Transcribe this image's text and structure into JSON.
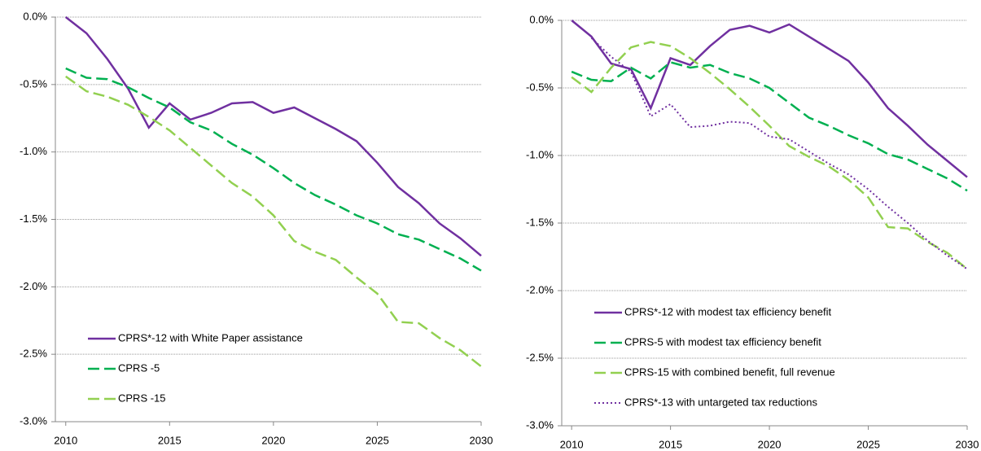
{
  "chart_data": [
    {
      "type": "line",
      "x": [
        2010,
        2011,
        2012,
        2013,
        2014,
        2015,
        2016,
        2017,
        2018,
        2019,
        2020,
        2021,
        2022,
        2023,
        2024,
        2025,
        2026,
        2027,
        2028,
        2029,
        2030
      ],
      "xlim": [
        2009.5,
        2030
      ],
      "xticks": [
        2010,
        2015,
        2020,
        2025,
        2030
      ],
      "ylim": [
        -3,
        0
      ],
      "yticks": [
        {
          "value": 0,
          "label": "0.0%"
        },
        {
          "value": -0.5,
          "label": "-0.5%"
        },
        {
          "value": -1,
          "label": "-1.0%"
        },
        {
          "value": -1.5,
          "label": "-1.5%"
        },
        {
          "value": -2,
          "label": "-2.0%"
        },
        {
          "value": -2.5,
          "label": "-2.5%"
        },
        {
          "value": -3,
          "label": "-3.0%"
        }
      ],
      "grid": true,
      "legend": "lower left",
      "series": [
        {
          "name": "CPRS*-12 with White Paper assistance",
          "color": "#7030a0",
          "dash": "solid",
          "values": [
            0,
            -0.12,
            -0.31,
            -0.53,
            -0.82,
            -0.64,
            -0.76,
            -0.71,
            -0.64,
            -0.63,
            -0.71,
            -0.67,
            -0.75,
            -0.83,
            -0.92,
            -1.08,
            -1.26,
            -1.38,
            -1.53,
            -1.64,
            -1.77
          ]
        },
        {
          "name": "CPRS -5",
          "color": "#00b050",
          "dash": "dash",
          "values": [
            -0.38,
            -0.45,
            -0.46,
            -0.52,
            -0.6,
            -0.67,
            -0.78,
            -0.84,
            -0.94,
            -1.02,
            -1.12,
            -1.23,
            -1.32,
            -1.39,
            -1.47,
            -1.53,
            -1.61,
            -1.65,
            -1.72,
            -1.79,
            -1.88
          ]
        },
        {
          "name": "CPRS -15",
          "color": "#92d050",
          "dash": "dash",
          "values": [
            -0.44,
            -0.55,
            -0.59,
            -0.65,
            -0.74,
            -0.84,
            -0.97,
            -1.1,
            -1.23,
            -1.33,
            -1.47,
            -1.66,
            -1.74,
            -1.8,
            -1.93,
            -2.05,
            -2.26,
            -2.27,
            -2.38,
            -2.47,
            -2.59
          ]
        }
      ]
    },
    {
      "type": "line",
      "x": [
        2010,
        2011,
        2012,
        2013,
        2014,
        2015,
        2016,
        2017,
        2018,
        2019,
        2020,
        2021,
        2022,
        2023,
        2024,
        2025,
        2026,
        2027,
        2028,
        2029,
        2030
      ],
      "xlim": [
        2009.5,
        2030
      ],
      "xticks": [
        2010,
        2015,
        2020,
        2025,
        2030
      ],
      "ylim": [
        -3,
        0
      ],
      "yticks": [
        {
          "value": 0,
          "label": "0.0%"
        },
        {
          "value": -0.5,
          "label": "-0.5%"
        },
        {
          "value": -1,
          "label": "-1.0%"
        },
        {
          "value": -1.5,
          "label": "-1.5%"
        },
        {
          "value": -2,
          "label": "-2.0%"
        },
        {
          "value": -2.5,
          "label": "-2.5%"
        },
        {
          "value": -3,
          "label": "-3.0%"
        }
      ],
      "grid": true,
      "legend": "lower left",
      "series": [
        {
          "name": "CPRS*-12 with modest tax efficiency benefit",
          "color": "#7030a0",
          "dash": "solid",
          "values": [
            0,
            -0.12,
            -0.32,
            -0.36,
            -0.65,
            -0.28,
            -0.33,
            -0.19,
            -0.07,
            -0.04,
            -0.09,
            -0.03,
            -0.12,
            -0.21,
            -0.3,
            -0.46,
            -0.65,
            -0.78,
            -0.92,
            -1.04,
            -1.16
          ]
        },
        {
          "name": "CPRS-5 with modest tax efficiency benefit",
          "color": "#00b050",
          "dash": "dash",
          "values": [
            -0.38,
            -0.44,
            -0.45,
            -0.35,
            -0.43,
            -0.31,
            -0.35,
            -0.33,
            -0.39,
            -0.43,
            -0.5,
            -0.61,
            -0.72,
            -0.78,
            -0.85,
            -0.91,
            -0.99,
            -1.03,
            -1.1,
            -1.17,
            -1.26
          ]
        },
        {
          "name": "CPRS-15 with combined benefit, full revenue",
          "color": "#92d050",
          "dash": "dash",
          "values": [
            -0.42,
            -0.53,
            -0.35,
            -0.2,
            -0.16,
            -0.19,
            -0.28,
            -0.39,
            -0.51,
            -0.64,
            -0.78,
            -0.93,
            -1.01,
            -1.08,
            -1.18,
            -1.31,
            -1.53,
            -1.54,
            -1.64,
            -1.72,
            -1.84
          ]
        },
        {
          "name": "CPRS*-13 with untargeted tax reductions",
          "color": "#7030a0",
          "dash": "dot",
          "values": [
            null,
            -0.13,
            -0.27,
            -0.38,
            -0.71,
            -0.62,
            -0.79,
            -0.78,
            -0.75,
            -0.76,
            -0.86,
            -0.88,
            -0.97,
            -1.06,
            -1.14,
            -1.25,
            -1.38,
            -1.5,
            -1.63,
            -1.74,
            -1.84
          ]
        }
      ]
    }
  ]
}
